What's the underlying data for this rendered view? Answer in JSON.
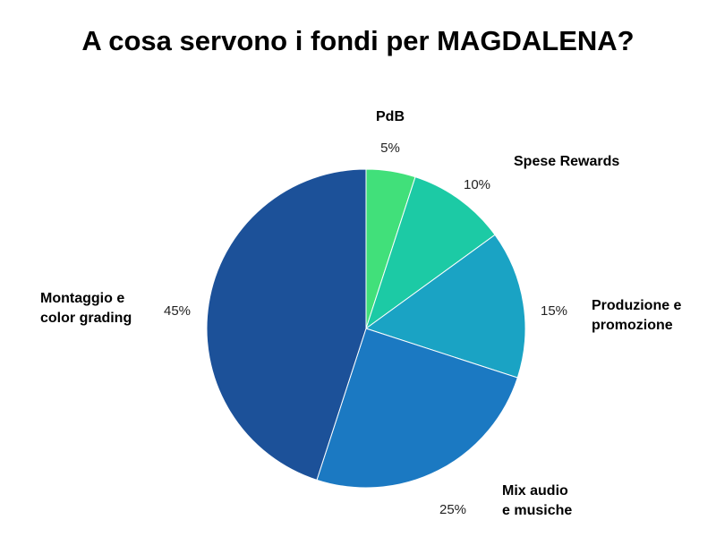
{
  "chart_data": {
    "type": "pie",
    "title": "A cosa servono i fondi per MAGDALENA?",
    "slices": [
      {
        "label": [
          "PdB"
        ],
        "value": 5,
        "value_label": "5%",
        "color": "#41e07a"
      },
      {
        "label": [
          "Spese Rewards"
        ],
        "value": 10,
        "value_label": "10%",
        "color": "#1ccaa5"
      },
      {
        "label": [
          "Produzione e",
          "promozione"
        ],
        "value": 15,
        "value_label": "15%",
        "color": "#1aa3c4"
      },
      {
        "label": [
          "Mix audio",
          "e musiche"
        ],
        "value": 25,
        "value_label": "25%",
        "color": "#1b79c2"
      },
      {
        "label": [
          "Montaggio e",
          "color grading"
        ],
        "value": 45,
        "value_label": "45%",
        "color": "#1c5199"
      }
    ],
    "start": "12 o'clock",
    "direction": "clockwise",
    "legend": "none"
  }
}
